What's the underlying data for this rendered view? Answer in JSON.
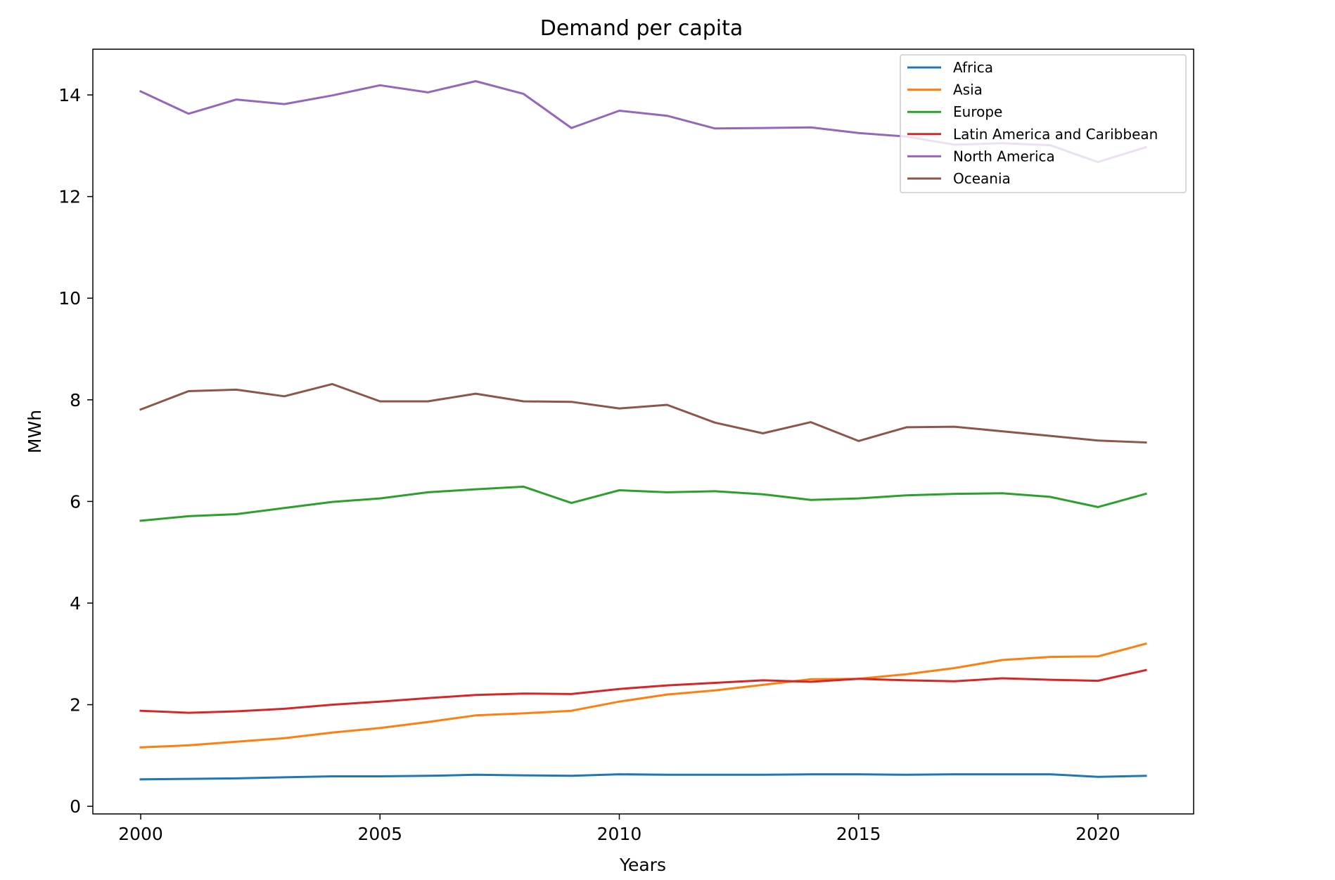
{
  "chart_data": {
    "type": "line",
    "title": "Demand per capita",
    "xlabel": "Years",
    "ylabel": "MWh",
    "xlim": [
      1999,
      2022
    ],
    "ylim": [
      -0.15,
      14.9
    ],
    "xticks": [
      2000,
      2005,
      2010,
      2015,
      2020
    ],
    "yticks": [
      0,
      2,
      4,
      6,
      8,
      10,
      12,
      14
    ],
    "grid": false,
    "legend_position": "top-right",
    "x": [
      2000,
      2001,
      2002,
      2003,
      2004,
      2005,
      2006,
      2007,
      2008,
      2009,
      2010,
      2011,
      2012,
      2013,
      2014,
      2015,
      2016,
      2017,
      2018,
      2019,
      2020,
      2021
    ],
    "series": [
      {
        "name": "Africa",
        "color": "#1f77b4",
        "values": [
          0.53,
          0.54,
          0.55,
          0.57,
          0.59,
          0.59,
          0.6,
          0.62,
          0.61,
          0.6,
          0.63,
          0.62,
          0.62,
          0.62,
          0.63,
          0.63,
          0.62,
          0.63,
          0.63,
          0.63,
          0.58,
          0.6
        ]
      },
      {
        "name": "Asia",
        "color": "#ff7f0e",
        "values": [
          1.16,
          1.2,
          1.27,
          1.34,
          1.45,
          1.54,
          1.66,
          1.79,
          1.83,
          1.88,
          2.06,
          2.2,
          2.28,
          2.39,
          2.5,
          2.51,
          2.6,
          2.72,
          2.88,
          2.94,
          2.95,
          3.2
        ]
      },
      {
        "name": "Europe",
        "color": "#2ca02c",
        "values": [
          5.62,
          5.71,
          5.75,
          5.87,
          5.99,
          6.06,
          6.18,
          6.24,
          6.29,
          5.97,
          6.22,
          6.18,
          6.2,
          6.14,
          6.03,
          6.06,
          6.12,
          6.15,
          6.16,
          6.09,
          5.89,
          6.15
        ]
      },
      {
        "name": "Latin America and Caribbean",
        "color": "#d62728",
        "values": [
          1.88,
          1.84,
          1.87,
          1.92,
          2.0,
          2.06,
          2.13,
          2.19,
          2.22,
          2.21,
          2.31,
          2.38,
          2.43,
          2.48,
          2.45,
          2.51,
          2.48,
          2.46,
          2.52,
          2.49,
          2.47,
          2.68
        ]
      },
      {
        "name": "North America",
        "color": "#9467bd",
        "values": [
          14.07,
          13.63,
          13.91,
          13.82,
          13.99,
          14.19,
          14.05,
          14.27,
          14.02,
          13.35,
          13.69,
          13.59,
          13.34,
          13.35,
          13.36,
          13.25,
          13.18,
          13.02,
          13.05,
          13.01,
          12.68,
          12.97
        ]
      },
      {
        "name": "Oceania",
        "color": "#8c564b",
        "values": [
          7.81,
          8.17,
          8.2,
          8.07,
          8.31,
          7.97,
          7.97,
          8.12,
          7.97,
          7.96,
          7.83,
          7.9,
          7.55,
          7.34,
          7.56,
          7.19,
          7.46,
          7.47,
          7.38,
          7.29,
          7.2,
          7.16
        ]
      }
    ]
  }
}
